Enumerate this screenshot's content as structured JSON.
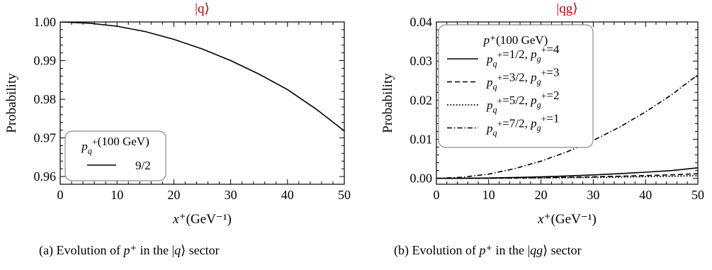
{
  "chart_data": [
    {
      "type": "line",
      "title": "|q⟩",
      "title_color": "#c00000",
      "xlabel": "x⁺(GeV⁻¹)",
      "ylabel": "Probability",
      "xlim": [
        0,
        50
      ],
      "ylim": [
        0.958,
        1.0
      ],
      "xticks": [
        0,
        10,
        20,
        30,
        40,
        50
      ],
      "yticks": [
        0.96,
        0.97,
        0.98,
        0.99,
        1.0
      ],
      "ytick_labels": [
        "0.96",
        "0.97",
        "0.98",
        "0.99",
        "1.00"
      ],
      "grid": false,
      "legend_position": "bottom-left",
      "legend_title": "p_q⁺(100 GeV)",
      "series": [
        {
          "name": "9/2",
          "style": "solid",
          "x": [
            0,
            5,
            10,
            15,
            20,
            25,
            30,
            35,
            40,
            45,
            50
          ],
          "y": [
            1.0,
            0.9997,
            0.9989,
            0.9975,
            0.9955,
            0.993,
            0.99,
            0.9865,
            0.9825,
            0.9775,
            0.9718
          ]
        }
      ],
      "caption": "(a)  Evolution of p⁺ in the |q⟩ sector"
    },
    {
      "type": "line",
      "title": "|qg⟩",
      "title_color": "#c00000",
      "xlabel": "x⁺(GeV⁻¹)",
      "ylabel": "Probability",
      "xlim": [
        0,
        50
      ],
      "ylim": [
        -0.0015,
        0.04
      ],
      "xticks": [
        0,
        10,
        20,
        30,
        40,
        50
      ],
      "yticks": [
        0.0,
        0.01,
        0.02,
        0.03,
        0.04
      ],
      "ytick_labels": [
        "0.00",
        "0.01",
        "0.02",
        "0.03",
        "0.04"
      ],
      "grid": false,
      "legend_position": "top-left",
      "legend_title": "p⁺(100 GeV)",
      "series": [
        {
          "name": "p_q⁺=1/2, p_g⁺=4",
          "style": "solid",
          "x": [
            0,
            5,
            10,
            15,
            20,
            25,
            30,
            35,
            40,
            45,
            50
          ],
          "y": [
            0.0,
            3e-05,
            0.0001,
            0.00023,
            0.0004,
            0.00062,
            0.00089,
            0.00121,
            0.00158,
            0.002,
            0.0027
          ]
        },
        {
          "name": "p_q⁺=3/2, p_g⁺=3",
          "style": "dashed",
          "x": [
            0,
            5,
            10,
            15,
            20,
            25,
            30,
            35,
            40,
            45,
            50
          ],
          "y": [
            0.0,
            1e-05,
            5e-05,
            0.0001,
            0.00018,
            0.00028,
            0.0004,
            0.00055,
            0.00072,
            0.00091,
            0.0012
          ]
        },
        {
          "name": "p_q⁺=5/2, p_g⁺=2",
          "style": "dotted",
          "x": [
            0,
            5,
            10,
            15,
            20,
            25,
            30,
            35,
            40,
            45,
            50
          ],
          "y": [
            0.0,
            1e-05,
            3e-05,
            6e-05,
            0.00011,
            0.00017,
            0.00024,
            0.00033,
            0.00043,
            0.00054,
            0.0007
          ]
        },
        {
          "name": "p_q⁺=7/2, p_g⁺=1",
          "style": "dashdot",
          "x": [
            0,
            5,
            10,
            15,
            20,
            25,
            30,
            35,
            40,
            45,
            50
          ],
          "y": [
            0.0,
            0.0003,
            0.0011,
            0.0025,
            0.0044,
            0.0068,
            0.0097,
            0.0131,
            0.017,
            0.0214,
            0.0265
          ]
        }
      ],
      "caption": "(b)  Evolution of p⁺ in the |qg⟩ sector"
    }
  ]
}
